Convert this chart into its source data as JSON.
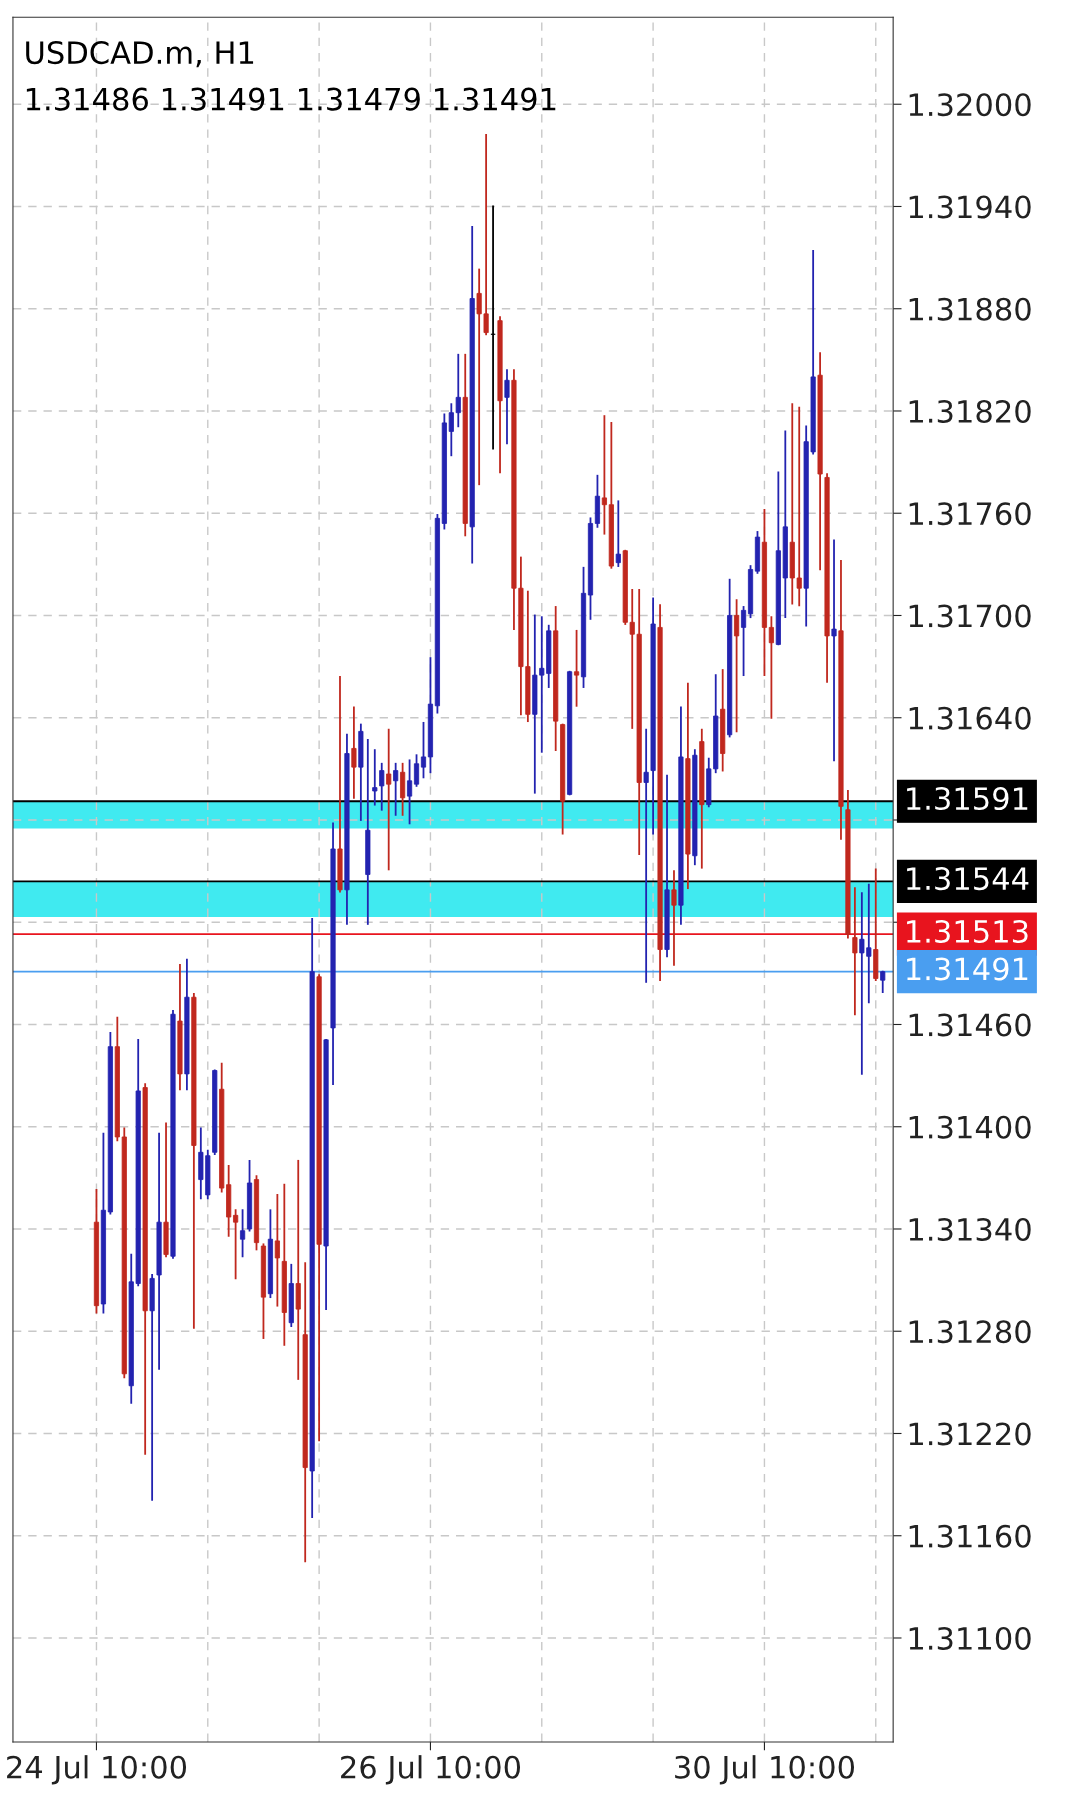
{
  "chart_data": {
    "type": "candlestick",
    "title": "USDCAD.m, H1",
    "subtitle": "1.31486 1.31491 1.31479 1.31491",
    "categories": [
      "24 Jul 10:00",
      null,
      null,
      null,
      null,
      null,
      null,
      null,
      null,
      null,
      null,
      null,
      null,
      null,
      null,
      null,
      null,
      null,
      null,
      null,
      null,
      null,
      null,
      null,
      null,
      null,
      null,
      null,
      null,
      null,
      null,
      null,
      null,
      null,
      null,
      null,
      null,
      null,
      null,
      null,
      null,
      null,
      null,
      null,
      null,
      null,
      null,
      null,
      "26 Jul 10:00",
      null,
      null,
      null,
      null,
      null,
      null,
      null,
      null,
      null,
      null,
      null,
      null,
      null,
      null,
      null,
      null,
      null,
      null,
      null,
      null,
      null,
      null,
      null,
      null,
      null,
      null,
      null,
      null,
      null,
      null,
      null,
      null,
      null,
      null,
      null,
      null,
      null,
      null,
      null,
      null,
      null,
      null,
      null,
      null,
      null,
      null,
      null,
      "30 Jul 10:00",
      null,
      null,
      null,
      null,
      null,
      null,
      null,
      null,
      null,
      null,
      null,
      null,
      null,
      null,
      null,
      null,
      null
    ],
    "ohlc": [
      [
        1.31344,
        1.31363,
        1.31291,
        1.31295
      ],
      [
        1.31296,
        1.31396,
        1.31291,
        1.31351
      ],
      [
        1.3135,
        1.31455,
        1.31349,
        1.31447
      ],
      [
        1.31447,
        1.31464,
        1.31392,
        1.31394
      ],
      [
        1.31394,
        1.31399,
        1.31253,
        1.31255
      ],
      [
        1.31248,
        1.31325,
        1.31238,
        1.31309
      ],
      [
        1.31308,
        1.31451,
        1.31307,
        1.31421
      ],
      [
        1.31423,
        1.31425,
        1.31208,
        1.31292
      ],
      [
        1.31292,
        1.31313,
        1.31181,
        1.31311
      ],
      [
        1.31313,
        1.31396,
        1.31258,
        1.31344
      ],
      [
        1.31344,
        1.31402,
        1.31324,
        1.31325
      ],
      [
        1.31324,
        1.31468,
        1.31323,
        1.31466
      ],
      [
        1.31462,
        1.31495,
        1.31422,
        1.31431
      ],
      [
        1.31431,
        1.31498,
        1.31422,
        1.31476
      ],
      [
        1.31476,
        1.31478,
        1.31282,
        1.31389
      ],
      [
        1.31369,
        1.31399,
        1.31358,
        1.31385
      ],
      [
        1.3136,
        1.31386,
        1.31358,
        1.31383
      ],
      [
        1.31385,
        1.31433,
        1.31384,
        1.31433
      ],
      [
        1.31422,
        1.31437,
        1.31362,
        1.31364
      ],
      [
        1.31366,
        1.31377,
        1.31336,
        1.31347
      ],
      [
        1.31348,
        1.31351,
        1.31311,
        1.31344
      ],
      [
        1.31334,
        1.31351,
        1.31324,
        1.31339
      ],
      [
        1.3134,
        1.3138,
        1.31339,
        1.31367
      ],
      [
        1.31369,
        1.31371,
        1.31328,
        1.31332
      ],
      [
        1.3133,
        1.31331,
        1.31276,
        1.313
      ],
      [
        1.31302,
        1.31351,
        1.313,
        1.31334
      ],
      [
        1.31333,
        1.3136,
        1.31295,
        1.31323
      ],
      [
        1.31321,
        1.31366,
        1.31272,
        1.31291
      ],
      [
        1.31285,
        1.31319,
        1.31283,
        1.31308
      ],
      [
        1.31308,
        1.3138,
        1.31252,
        1.31293
      ],
      [
        1.31278,
        1.3132,
        1.31145,
        1.312
      ],
      [
        1.31198,
        1.31522,
        1.31171,
        1.31491
      ],
      [
        1.31488,
        1.31489,
        1.31216,
        1.31331
      ],
      [
        1.3133,
        1.31451,
        1.31293,
        1.31451
      ],
      [
        1.31458,
        1.31578,
        1.31425,
        1.31563
      ],
      [
        1.31563,
        1.31664,
        1.31538,
        1.31539
      ],
      [
        1.31539,
        1.3163,
        1.31519,
        1.31619
      ],
      [
        1.31622,
        1.31646,
        1.31593,
        1.31611
      ],
      [
        1.31611,
        1.31636,
        1.3158,
        1.31632
      ],
      [
        1.31548,
        1.31627,
        1.31519,
        1.31574
      ],
      [
        1.31597,
        1.31621,
        1.31589,
        1.31599
      ],
      [
        1.316,
        1.31613,
        1.31586,
        1.31609
      ],
      [
        1.31607,
        1.31633,
        1.31551,
        1.31601
      ],
      [
        1.31603,
        1.31613,
        1.31583,
        1.31609
      ],
      [
        1.31608,
        1.31613,
        1.31583,
        1.31593
      ],
      [
        1.31594,
        1.31615,
        1.31578,
        1.31603
      ],
      [
        1.31601,
        1.31618,
        1.316,
        1.31613
      ],
      [
        1.31611,
        1.31637,
        1.31605,
        1.31617
      ],
      [
        1.31617,
        1.31675,
        1.31608,
        1.31648
      ],
      [
        1.31647,
        1.31759,
        1.31643,
        1.31757
      ],
      [
        1.31754,
        1.31818,
        1.31751,
        1.31813
      ],
      [
        1.31808,
        1.31824,
        1.31794,
        1.31819
      ],
      [
        1.31819,
        1.31853,
        1.31811,
        1.31828
      ],
      [
        1.31828,
        1.31853,
        1.31747,
        1.31754
      ],
      [
        1.31752,
        1.31928,
        1.31731,
        1.31886
      ],
      [
        1.31889,
        1.31903,
        1.31777,
        1.31877
      ],
      [
        1.31877,
        1.31982,
        1.31865,
        1.31866
      ],
      [
        1.31865,
        1.3194,
        1.31798,
        1.31865
      ],
      [
        1.31873,
        1.31875,
        1.31784,
        1.31826
      ],
      [
        1.31828,
        1.31844,
        1.31801,
        1.31838
      ],
      [
        1.31838,
        1.31844,
        1.31692,
        1.31716
      ],
      [
        1.31716,
        1.31734,
        1.31642,
        1.3167
      ],
      [
        1.3167,
        1.31714,
        1.31638,
        1.31642
      ],
      [
        1.31642,
        1.317,
        1.31596,
        1.31665
      ],
      [
        1.31665,
        1.31699,
        1.3162,
        1.31669
      ],
      [
        1.31666,
        1.31694,
        1.31658,
        1.31691
      ],
      [
        1.31691,
        1.31705,
        1.31621,
        1.31638
      ],
      [
        1.31636,
        1.31636,
        1.31572,
        1.31591
      ],
      [
        1.31595,
        1.31667,
        1.31595,
        1.31667
      ],
      [
        1.31667,
        1.31691,
        1.31647,
        1.31665
      ],
      [
        1.31664,
        1.31728,
        1.31658,
        1.31713
      ],
      [
        1.31712,
        1.31757,
        1.31698,
        1.31754
      ],
      [
        1.31754,
        1.31782,
        1.31752,
        1.3177
      ],
      [
        1.31769,
        1.31817,
        1.31748,
        1.31765
      ],
      [
        1.31765,
        1.31813,
        1.31728,
        1.31729
      ],
      [
        1.31731,
        1.31767,
        1.31729,
        1.31736
      ],
      [
        1.31738,
        1.31738,
        1.31695,
        1.31696
      ],
      [
        1.31696,
        1.31715,
        1.31634,
        1.31689
      ],
      [
        1.31689,
        1.31715,
        1.3156,
        1.31602
      ],
      [
        1.31602,
        1.31633,
        1.31485,
        1.31608
      ],
      [
        1.31609,
        1.3171,
        1.31572,
        1.31695
      ],
      [
        1.31693,
        1.31706,
        1.31486,
        1.31504
      ],
      [
        1.31504,
        1.31606,
        1.315,
        1.31539
      ],
      [
        1.31539,
        1.3155,
        1.31495,
        1.3153
      ],
      [
        1.3153,
        1.31646,
        1.31519,
        1.31617
      ],
      [
        1.31616,
        1.3166,
        1.3154,
        1.3156
      ],
      [
        1.31559,
        1.31621,
        1.31554,
        1.31618
      ],
      [
        1.31626,
        1.31633,
        1.31552,
        1.31589
      ],
      [
        1.31589,
        1.31616,
        1.31588,
        1.3161
      ],
      [
        1.3161,
        1.31665,
        1.31608,
        1.31641
      ],
      [
        1.31645,
        1.31668,
        1.31609,
        1.31619
      ],
      [
        1.3163,
        1.31721,
        1.31629,
        1.317
      ],
      [
        1.317,
        1.31709,
        1.31632,
        1.31688
      ],
      [
        1.31693,
        1.31705,
        1.31665,
        1.31703
      ],
      [
        1.31701,
        1.31729,
        1.31699,
        1.31727
      ],
      [
        1.31726,
        1.31749,
        1.31725,
        1.31746
      ],
      [
        1.31743,
        1.31762,
        1.31665,
        1.31693
      ],
      [
        1.31693,
        1.31699,
        1.3164,
        1.31684
      ],
      [
        1.31683,
        1.31784,
        1.31683,
        1.31738
      ],
      [
        1.31722,
        1.31808,
        1.31699,
        1.31752
      ],
      [
        1.31743,
        1.31824,
        1.31707,
        1.31722
      ],
      [
        1.31722,
        1.31822,
        1.31706,
        1.31716
      ],
      [
        1.31716,
        1.31811,
        1.31694,
        1.31802
      ],
      [
        1.31796,
        1.31914,
        1.31795,
        1.3184
      ],
      [
        1.31841,
        1.31854,
        1.31727,
        1.31783
      ],
      [
        1.31781,
        1.31783,
        1.31661,
        1.31688
      ],
      [
        1.31688,
        1.31744,
        1.31615,
        1.31692
      ],
      [
        1.31691,
        1.31732,
        1.31569,
        1.31588
      ],
      [
        1.31586,
        1.31597,
        1.31511,
        1.31513
      ],
      [
        1.31511,
        1.3154,
        1.31466,
        1.31502
      ],
      [
        1.31502,
        1.31537,
        1.31431,
        1.3151
      ],
      [
        1.315,
        1.31542,
        1.31473,
        1.31505
      ],
      [
        1.31504,
        1.31551,
        1.31486,
        1.31487
      ],
      [
        1.31486,
        1.31491,
        1.31479,
        1.31491
      ]
    ],
    "colors": [
      "#c0281e",
      "#2323b0",
      "#2323b0",
      "#c0281e",
      "#c0281e",
      "#2323b0",
      "#2323b0",
      "#c0281e",
      "#2323b0",
      "#2323b0",
      "#c0281e",
      "#2323b0",
      "#c0281e",
      "#2323b0",
      "#c0281e",
      "#2323b0",
      "#2323b0",
      "#2323b0",
      "#c0281e",
      "#c0281e",
      "#c0281e",
      "#2323b0",
      "#2323b0",
      "#c0281e",
      "#c0281e",
      "#2323b0",
      "#c0281e",
      "#c0281e",
      "#2323b0",
      "#c0281e",
      "#c0281e",
      "#2323b0",
      "#c0281e",
      "#2323b0",
      "#2323b0",
      "#c0281e",
      "#2323b0",
      "#c0281e",
      "#2323b0",
      "#2323b0",
      "#2323b0",
      "#2323b0",
      "#c0281e",
      "#2323b0",
      "#c0281e",
      "#2323b0",
      "#2323b0",
      "#2323b0",
      "#2323b0",
      "#2323b0",
      "#2323b0",
      "#2323b0",
      "#2323b0",
      "#c0281e",
      "#2323b0",
      "#c0281e",
      "#c0281e",
      "#000000",
      "#c0281e",
      "#2323b0",
      "#c0281e",
      "#c0281e",
      "#c0281e",
      "#2323b0",
      "#2323b0",
      "#2323b0",
      "#c0281e",
      "#c0281e",
      "#2323b0",
      "#c0281e",
      "#2323b0",
      "#2323b0",
      "#2323b0",
      "#c0281e",
      "#c0281e",
      "#2323b0",
      "#c0281e",
      "#c0281e",
      "#c0281e",
      "#2323b0",
      "#2323b0",
      "#c0281e",
      "#2323b0",
      "#c0281e",
      "#2323b0",
      "#c0281e",
      "#2323b0",
      "#c0281e",
      "#2323b0",
      "#2323b0",
      "#c0281e",
      "#2323b0",
      "#c0281e",
      "#2323b0",
      "#2323b0",
      "#2323b0",
      "#c0281e",
      "#c0281e",
      "#2323b0",
      "#2323b0",
      "#c0281e",
      "#c0281e",
      "#2323b0",
      "#2323b0",
      "#c0281e",
      "#c0281e",
      "#2323b0",
      "#c0281e",
      "#c0281e",
      "#c0281e",
      "#2323b0",
      "#2323b0",
      "#c0281e",
      "#2323b0"
    ],
    "ylim": [
      1.31039,
      1.32051
    ],
    "yticks": [
      {
        "value": 1.311,
        "label": "1.31100"
      },
      {
        "value": 1.3116,
        "label": "1.31160"
      },
      {
        "value": 1.3122,
        "label": "1.31220"
      },
      {
        "value": 1.3128,
        "label": "1.31280"
      },
      {
        "value": 1.3134,
        "label": "1.31340"
      },
      {
        "value": 1.314,
        "label": "1.31400"
      },
      {
        "value": 1.3146,
        "label": "1.31460"
      },
      {
        "value": 1.3152,
        "label": null
      },
      {
        "value": 1.3158,
        "label": null
      },
      {
        "value": 1.3164,
        "label": "1.31640"
      },
      {
        "value": 1.317,
        "label": "1.31700"
      },
      {
        "value": 1.3176,
        "label": "1.31760"
      },
      {
        "value": 1.3182,
        "label": "1.31820"
      },
      {
        "value": 1.3188,
        "label": "1.31880"
      },
      {
        "value": 1.3194,
        "label": "1.31940"
      },
      {
        "value": 1.32,
        "label": "1.32000"
      }
    ],
    "ref_lines": [
      {
        "axis": "y",
        "value": 1.31591,
        "label": "1.31591",
        "color": "#000000"
      },
      {
        "axis": "y",
        "value": 1.31544,
        "label": "1.31544",
        "color": "#000000"
      },
      {
        "axis": "y",
        "value": 1.31513,
        "label": "1.31513",
        "color": "#e8141e"
      },
      {
        "axis": "y",
        "value": 1.31491,
        "label": "1.31491",
        "color": "#4a9ef0"
      }
    ],
    "bands": [
      {
        "axis": "y",
        "from": 1.31575,
        "to": 1.31591,
        "color": "#40eaf0"
      },
      {
        "axis": "y",
        "from": 1.31523,
        "to": 1.31544,
        "color": "#40eaf0"
      }
    ],
    "grid": true
  }
}
